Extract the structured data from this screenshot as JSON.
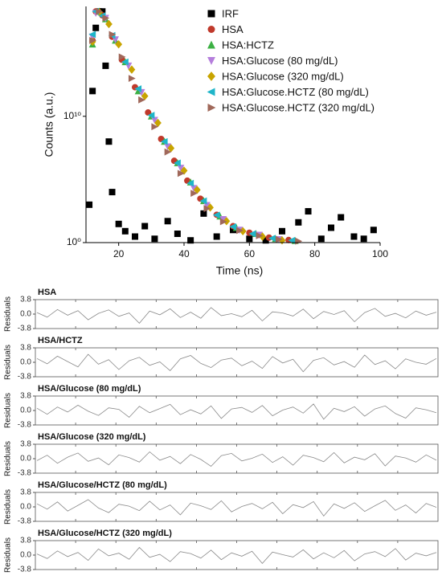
{
  "chart_data": [
    {
      "type": "scatter",
      "xlabel": "Time (ns)",
      "ylabel": "Counts (a.u.)",
      "xlim": [
        10,
        100
      ],
      "xticks": [
        20,
        40,
        60,
        80,
        100
      ],
      "ylim": [
        1,
        5e+18
      ],
      "log_y": true,
      "yticks": [
        {
          "value": 1,
          "label": "10⁰"
        },
        {
          "value": 10000000000.0,
          "label": "10¹⁰"
        }
      ],
      "series": [
        {
          "name": "IRF",
          "color": "#000000",
          "marker": "square",
          "x": [
            11,
            12,
            13,
            14,
            15,
            16,
            17,
            18,
            20,
            22,
            25,
            28,
            31,
            35,
            38,
            42,
            46,
            50,
            55,
            60,
            65,
            70,
            75,
            78,
            82,
            85,
            88,
            92,
            95,
            98
          ],
          "values": [
            1000.0,
            1000000000000.0,
            1e+17,
            2e+18,
            2e+18,
            100000000000000.0,
            100000000.0,
            10000.0,
            30,
            8,
            3,
            20,
            2,
            50,
            5,
            1.5,
            200,
            3,
            10,
            2,
            1.5,
            8,
            40,
            300,
            2,
            15,
            100,
            3,
            2,
            10
          ]
        },
        {
          "name": "HSA",
          "color": "#c0392b",
          "marker": "circle",
          "x": [
            12,
            13,
            15,
            18,
            21,
            25,
            29,
            33,
            37,
            41,
            45,
            50,
            55,
            60,
            66,
            72
          ],
          "values": [
            1e+16,
            2e+18,
            1e+18,
            2e+16,
            300000000000000.0,
            2000000000000.0,
            20000000000.0,
            160000000.0,
            3000000.0,
            80000.0,
            3000.0,
            160,
            20,
            6,
            2.5,
            1.6
          ]
        },
        {
          "name": "HSA:HCTZ",
          "color": "#3cb043",
          "marker": "tri-up",
          "x": [
            12,
            14,
            16,
            19,
            22,
            26,
            30,
            34,
            38,
            42,
            46,
            51,
            56,
            62,
            68,
            74
          ],
          "values": [
            5000000000000000.0,
            2e+18,
            5e+17,
            1e+16,
            200000000000000.0,
            1000000000000.0,
            10000000000.0,
            100000000.0,
            2000000.0,
            60000.0,
            2000.0,
            120,
            15,
            5,
            2,
            1.4
          ]
        },
        {
          "name": "HSA:Glucose (80 mg/dL)",
          "color": "#b57edc",
          "marker": "tri-down",
          "x": [
            12,
            13,
            16,
            19,
            23,
            27,
            31,
            35,
            39,
            43,
            47,
            52,
            57,
            63,
            69
          ],
          "values": [
            2e+16,
            1.5e+18,
            6e+17,
            1.2e+16,
            100000000000000.0,
            800000000000.0,
            5000000000.0,
            40000000.0,
            800000.0,
            20000.0,
            900,
            70,
            10,
            4,
            1.8
          ]
        },
        {
          "name": "HSA:Glucose (320 mg/dL)",
          "color": "#c8a400",
          "marker": "diamond",
          "x": [
            12,
            14,
            17,
            20,
            24,
            28,
            32,
            36,
            40,
            44,
            48,
            53,
            58,
            64,
            70
          ],
          "values": [
            8000000000000000.0,
            1.8e+18,
            2e+17,
            5000000000000000.0,
            50000000000000.0,
            400000000000.0,
            3000000000.0,
            30000000.0,
            500000.0,
            15000.0,
            600,
            50,
            8,
            3,
            1.5
          ]
        },
        {
          "name": "HSA:Glucose.HCTZ (80 mg/dL)",
          "color": "#1fb5c9",
          "marker": "tri-left",
          "x": [
            12,
            13,
            15,
            18,
            22,
            26,
            30,
            34,
            38,
            42,
            46,
            50,
            55,
            61,
            67,
            73
          ],
          "values": [
            3e+16,
            2e+18,
            9e+17,
            2.5e+16,
            200000000000000.0,
            1500000000000.0,
            12000000000.0,
            100000000.0,
            2000000.0,
            50000.0,
            2000.0,
            150,
            18,
            5,
            2.2,
            1.5
          ]
        },
        {
          "name": "HSA:Glucose.HCTZ (320 mg/dL)",
          "color": "#a0685a",
          "marker": "tri-right",
          "x": [
            12,
            14,
            16,
            18,
            21,
            24,
            27,
            31,
            35,
            39,
            43,
            47,
            52,
            57,
            63,
            69,
            75
          ],
          "values": [
            1e+16,
            2e+18,
            6e+17,
            3e+16,
            500000000000000.0,
            10000000000000.0,
            200000000000.0,
            1500000000.0,
            15000000.0,
            300000.0,
            8000.0,
            500,
            45,
            9,
            3.5,
            1.8,
            1.3
          ]
        }
      ]
    },
    {
      "type": "line",
      "title": "HSA",
      "ylabel": "Residuals",
      "color": "#8a8a8a",
      "ylim": [
        -3.8,
        3.8
      ],
      "yticks": [
        3.8,
        {
          "value": 0,
          "label": "0.0"
        },
        -3.8
      ],
      "values": [
        0.4,
        -0.8,
        1.2,
        -0.3,
        0.9,
        -1.5,
        0.2,
        1.1,
        -0.6,
        0.3,
        -2.4,
        0.8,
        -0.2,
        1.4,
        -0.9,
        0.5,
        -1.1,
        1.7,
        -0.4,
        0.1,
        -0.7,
        1.0,
        -1.8,
        0.6,
        0.3,
        -0.5,
        1.3,
        -1.2,
        0.7,
        -0.1,
        0.9,
        -2.0,
        0.4,
        1.5,
        -0.6,
        0.2,
        -1.0,
        0.8,
        -0.3,
        0.5
      ]
    },
    {
      "type": "line",
      "title": "HSA/HCTZ",
      "ylabel": "Residuals",
      "color": "#8a8a8a",
      "ylim": [
        -3.8,
        3.8
      ],
      "yticks": [
        3.8,
        {
          "value": 0,
          "label": "0.0"
        },
        -3.8
      ],
      "values": [
        1.0,
        -0.4,
        1.6,
        0.2,
        -1.2,
        2.1,
        -0.5,
        0.7,
        -1.9,
        0.4,
        1.3,
        -0.8,
        0.1,
        -2.2,
        0.9,
        1.8,
        -0.3,
        -1.4,
        0.6,
        1.1,
        -0.9,
        0.3,
        -1.6,
        1.5,
        -0.2,
        0.8,
        -2.5,
        0.5,
        1.2,
        -0.7,
        0.2,
        -1.3,
        1.9,
        -0.6,
        0.4,
        -1.7,
        0.9,
        0.0,
        -0.5,
        1.0
      ]
    },
    {
      "type": "line",
      "title": "HSA/Glucose (80 mg/dL)",
      "ylabel": "Residuals",
      "color": "#8a8a8a",
      "ylim": [
        -3.8,
        3.8
      ],
      "yticks": [
        3.8,
        {
          "value": 0,
          "label": "0.0"
        },
        -3.8
      ],
      "values": [
        0.6,
        -1.0,
        0.9,
        -0.4,
        1.4,
        -0.2,
        -1.3,
        0.7,
        0.3,
        -1.8,
        1.1,
        -0.6,
        0.5,
        1.6,
        -1.1,
        0.2,
        -0.9,
        1.2,
        -2.1,
        0.4,
        0.8,
        -0.5,
        1.3,
        -1.4,
        0.1,
        0.9,
        -0.7,
        1.7,
        -2.3,
        0.6,
        -0.3,
        1.0,
        -1.5,
        0.4,
        1.2,
        -0.8,
        -2.0,
        0.7,
        0.2,
        -0.6
      ]
    },
    {
      "type": "line",
      "title": "HSA/Glucose (320 mg/dL)",
      "ylabel": "Residuals",
      "color": "#8a8a8a",
      "ylim": [
        -3.8,
        3.8
      ],
      "yticks": [
        3.8,
        {
          "value": 0,
          "label": "0.0"
        },
        -3.8
      ],
      "values": [
        -0.5,
        0.9,
        -1.2,
        0.4,
        1.5,
        -0.7,
        0.2,
        -1.6,
        1.0,
        0.3,
        -0.9,
        1.8,
        -0.4,
        0.6,
        -1.3,
        1.1,
        -0.2,
        -2.0,
        0.8,
        1.4,
        -0.6,
        0.1,
        1.2,
        -1.0,
        0.5,
        -1.7,
        0.9,
        0.3,
        -0.8,
        1.6,
        -1.1,
        0.4,
        -0.3,
        1.3,
        -1.9,
        0.7,
        0.2,
        -0.9,
        1.0,
        -0.4
      ]
    },
    {
      "type": "line",
      "title": "HSA/Glucose/HCTZ (80 mg/dL)",
      "ylabel": "Residuals",
      "color": "#8a8a8a",
      "ylim": [
        -3.8,
        3.8
      ],
      "yticks": [
        3.8,
        {
          "value": 0,
          "label": "0.0"
        },
        -3.8
      ],
      "values": [
        0.8,
        -0.6,
        1.3,
        -1.1,
        0.4,
        1.9,
        -0.3,
        -1.5,
        0.7,
        0.2,
        -1.0,
        1.5,
        -0.8,
        0.5,
        -2.1,
        1.0,
        0.3,
        -0.7,
        1.6,
        -1.3,
        0.1,
        0.9,
        -0.5,
        1.2,
        -1.8,
        0.6,
        -0.2,
        1.4,
        -2.4,
        0.8,
        -0.4,
        1.1,
        -1.2,
        0.3,
        1.7,
        -0.9,
        0.5,
        -1.6,
        0.9,
        -0.1
      ]
    },
    {
      "type": "line",
      "title": "HSA/Glucose/HCTZ (320 mg/dL)",
      "ylabel": "Residuals",
      "color": "#8a8a8a",
      "ylim": [
        -3.8,
        3.8
      ],
      "yticks": [
        3.8,
        {
          "value": 0,
          "label": "0.0"
        },
        -3.8
      ],
      "values": [
        0.3,
        -0.9,
        1.1,
        -0.4,
        0.7,
        -1.4,
        1.6,
        -0.2,
        0.5,
        -1.1,
        2.0,
        -0.6,
        0.2,
        -1.7,
        0.9,
        0.4,
        -0.8,
        1.3,
        -1.2,
        0.6,
        -0.3,
        1.0,
        -2.2,
        0.8,
        0.1,
        -0.5,
        1.4,
        -1.0,
        0.6,
        -0.7,
        1.2,
        -1.5,
        0.3,
        0.9,
        -0.4,
        1.7,
        -1.3,
        0.5,
        -0.2,
        0.7
      ]
    }
  ]
}
